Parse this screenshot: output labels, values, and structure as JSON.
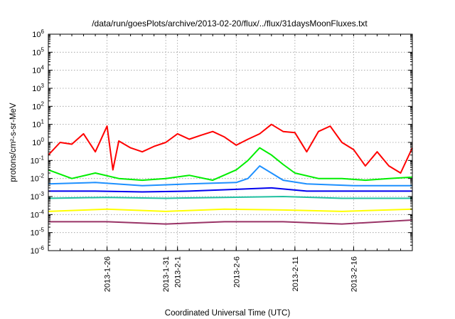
{
  "chart_data": {
    "type": "line",
    "title": "/data/run/goesPlots/archive/2013-02-20/flux/../flux/31daysMoonFluxes.txt",
    "xlabel": "Coordinated Universal Time (UTC)",
    "ylabel": "protons/cm²-s-sr-MeV",
    "yscale": "log",
    "ylim": [
      1e-06,
      1000000.0
    ],
    "xlim": [
      "2013-01-21",
      "2013-02-21"
    ],
    "grid": true,
    "legend": "none",
    "x_tick_labels": [
      "2013-1-26",
      "2013-1-31",
      "2013-2-1",
      "2013-2-6",
      "2013-2-11",
      "2013-2-16"
    ],
    "x_tick_dates": [
      "2013-01-26",
      "2013-01-31",
      "2013-02-01",
      "2013-02-06",
      "2013-02-11",
      "2013-02-16"
    ],
    "y_tick_exponents": [
      -6,
      -5,
      -4,
      -3,
      -2,
      -1,
      0,
      1,
      2,
      3,
      4,
      5,
      6
    ],
    "series": [
      {
        "color": "#ff0000",
        "x": [
          "2013-01-21",
          "2013-01-22",
          "2013-01-23",
          "2013-01-24",
          "2013-01-25",
          "2013-01-26",
          "2013-01-26T12:00",
          "2013-01-27",
          "2013-01-28",
          "2013-01-29",
          "2013-01-30",
          "2013-01-31",
          "2013-02-01",
          "2013-02-02",
          "2013-02-03",
          "2013-02-04",
          "2013-02-05",
          "2013-02-06",
          "2013-02-07",
          "2013-02-08",
          "2013-02-09",
          "2013-02-10",
          "2013-02-11",
          "2013-02-12",
          "2013-02-13",
          "2013-02-14",
          "2013-02-15",
          "2013-02-16",
          "2013-02-17",
          "2013-02-18",
          "2013-02-19",
          "2013-02-20",
          "2013-02-21"
        ],
        "y": [
          0.2,
          1.0,
          0.8,
          3.0,
          0.3,
          8.0,
          0.03,
          1.2,
          0.5,
          0.3,
          0.6,
          1.0,
          3.0,
          1.5,
          2.5,
          4.0,
          2.0,
          0.7,
          1.5,
          3.0,
          10.0,
          4.0,
          3.5,
          0.3,
          4.0,
          8.0,
          1.0,
          0.4,
          0.05,
          0.3,
          0.05,
          0.02,
          0.5
        ]
      },
      {
        "color": "#00ee00",
        "x": [
          "2013-01-21",
          "2013-01-23",
          "2013-01-25",
          "2013-01-27",
          "2013-01-29",
          "2013-01-31",
          "2013-02-02",
          "2013-02-04",
          "2013-02-06",
          "2013-02-07",
          "2013-02-08",
          "2013-02-09",
          "2013-02-10",
          "2013-02-11",
          "2013-02-13",
          "2013-02-15",
          "2013-02-17",
          "2013-02-19",
          "2013-02-21"
        ],
        "y": [
          0.03,
          0.01,
          0.02,
          0.01,
          0.008,
          0.01,
          0.015,
          0.008,
          0.03,
          0.1,
          0.5,
          0.2,
          0.06,
          0.02,
          0.01,
          0.01,
          0.008,
          0.01,
          0.012
        ]
      },
      {
        "color": "#1e90ff",
        "x": [
          "2013-01-21",
          "2013-01-25",
          "2013-01-29",
          "2013-02-02",
          "2013-02-06",
          "2013-02-07",
          "2013-02-08",
          "2013-02-09",
          "2013-02-10",
          "2013-02-12",
          "2013-02-16",
          "2013-02-21"
        ],
        "y": [
          0.005,
          0.006,
          0.004,
          0.005,
          0.006,
          0.01,
          0.05,
          0.02,
          0.008,
          0.005,
          0.004,
          0.004
        ]
      },
      {
        "color": "#0000ee",
        "x": [
          "2013-01-21",
          "2013-01-25",
          "2013-01-29",
          "2013-02-02",
          "2013-02-06",
          "2013-02-09",
          "2013-02-12",
          "2013-02-16",
          "2013-02-21"
        ],
        "y": [
          0.002,
          0.002,
          0.0018,
          0.002,
          0.0025,
          0.003,
          0.002,
          0.002,
          0.002
        ]
      },
      {
        "color": "#20c0a0",
        "x": [
          "2013-01-21",
          "2013-01-26",
          "2013-01-31",
          "2013-02-05",
          "2013-02-10",
          "2013-02-15",
          "2013-02-21"
        ],
        "y": [
          0.0008,
          0.0009,
          0.0008,
          0.0009,
          0.001,
          0.0008,
          0.0008
        ]
      },
      {
        "color": "#ffff00",
        "x": [
          "2013-01-21",
          "2013-01-26",
          "2013-01-31",
          "2013-02-05",
          "2013-02-10",
          "2013-02-15",
          "2013-02-21"
        ],
        "y": [
          0.00015,
          0.0002,
          0.00015,
          0.0002,
          0.00018,
          0.00015,
          0.0002
        ]
      },
      {
        "color": "#993366",
        "x": [
          "2013-01-21",
          "2013-01-26",
          "2013-01-31",
          "2013-02-05",
          "2013-02-10",
          "2013-02-15",
          "2013-02-21"
        ],
        "y": [
          4e-05,
          4e-05,
          3e-05,
          4e-05,
          4e-05,
          3e-05,
          5e-05
        ]
      }
    ]
  }
}
